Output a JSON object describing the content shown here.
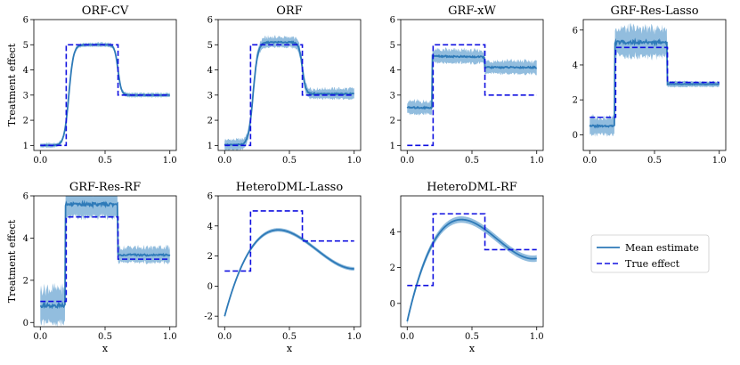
{
  "figure": {
    "ylabel": "Treatment effect",
    "xlabel": "x",
    "legend": {
      "mean_label": "Mean estimate",
      "true_label": "True effect",
      "placement": "bottom-right empty cell"
    },
    "colors": {
      "mean": "#2e7ab8",
      "band": "#7fb2d8",
      "true": "#1010e0"
    }
  },
  "chart_data": [
    {
      "type": "line",
      "title": "ORF-CV",
      "ylim": [
        0.8,
        6
      ],
      "yticks": [
        1,
        2,
        3,
        4,
        5,
        6
      ],
      "xticks": [
        "0.0",
        "0.5",
        "1.0"
      ],
      "shape": "step_smooth",
      "series": [
        {
          "name": "Mean estimate",
          "low": 1.0,
          "high": 5.0,
          "tail": 3.0,
          "band": 0.08
        }
      ]
    },
    {
      "type": "line",
      "title": "ORF",
      "ylim": [
        0.8,
        6
      ],
      "yticks": [
        1,
        2,
        3,
        4,
        5,
        6
      ],
      "xticks": [
        "0.0",
        "0.5",
        "1.0"
      ],
      "shape": "step_smooth",
      "series": [
        {
          "name": "Mean estimate",
          "low": 1.02,
          "high": 5.1,
          "tail": 3.05,
          "band": 0.2
        }
      ]
    },
    {
      "type": "line",
      "title": "GRF-xW",
      "ylim": [
        0.8,
        6
      ],
      "yticks": [
        1,
        2,
        3,
        4,
        5,
        6
      ],
      "xticks": [
        "0.0",
        "0.5",
        "1.0"
      ],
      "shape": "step_flat",
      "series": [
        {
          "name": "Mean estimate",
          "low": 2.5,
          "high": 4.55,
          "tail": 4.1,
          "band": 0.25,
          "high_slope": -0.1
        }
      ]
    },
    {
      "type": "line",
      "title": "GRF-Res-Lasso",
      "ylim": [
        -0.9,
        6.6
      ],
      "yticks": [
        0,
        2,
        4,
        6
      ],
      "xticks": [
        "0.0",
        "0.5",
        "1.0"
      ],
      "shape": "step_flat",
      "series": [
        {
          "name": "Mean estimate",
          "low": 0.5,
          "high": 5.3,
          "tail": 2.9,
          "band": 0.5,
          "high_band": 0.8,
          "tail_band": 0.15
        }
      ]
    },
    {
      "type": "line",
      "title": "GRF-Res-RF",
      "ylim": [
        -0.2,
        6
      ],
      "yticks": [
        0,
        2,
        4,
        6
      ],
      "xticks": [
        "0.0",
        "0.5",
        "1.0"
      ],
      "shape": "step_flat",
      "series": [
        {
          "name": "Mean estimate",
          "low": 0.8,
          "high": 5.6,
          "tail": 3.2,
          "band": 0.8,
          "high_band": 0.6,
          "tail_band": 0.35
        }
      ]
    },
    {
      "type": "line",
      "title": "HeteroDML-Lasso",
      "ylim": [
        -2.7,
        6
      ],
      "yticks": [
        -2,
        0,
        2,
        4,
        6
      ],
      "xticks": [
        "0.0",
        "0.5",
        "1.0"
      ],
      "shape": "poly",
      "series": [
        {
          "name": "Mean estimate",
          "coeffs": [
            -2.0,
            32.15,
            -54.92,
            25.92
          ],
          "band": 0.12
        }
      ]
    },
    {
      "type": "line",
      "title": "HeteroDML-RF",
      "ylim": [
        -1.3,
        6
      ],
      "yticks": [
        0,
        2,
        4
      ],
      "xticks": [
        "0.0",
        "0.5",
        "1.0"
      ],
      "shape": "poly",
      "series": [
        {
          "name": "Mean estimate",
          "coeffs": [
            -1.0,
            31.66,
            -54.1,
            25.95
          ],
          "band": 0.18
        }
      ]
    }
  ],
  "true_effect": {
    "breaks": [
      0.2,
      0.6
    ],
    "values": [
      1,
      5,
      3
    ]
  }
}
